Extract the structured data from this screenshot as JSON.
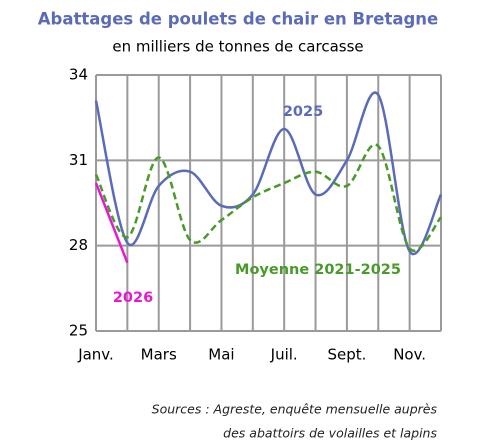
{
  "chart_data": {
    "type": "line",
    "title": "Abattages de poulets de chair en Bretagne",
    "subtitle": "en milliers de tonnes de carcasse",
    "categories": [
      "Janv.",
      null,
      "Mars",
      null,
      "Mai",
      null,
      "Juil.",
      null,
      "Sept.",
      null,
      "Nov.",
      null
    ],
    "series": [
      {
        "name": "2025",
        "color": "#5a6bb8",
        "dash": false,
        "values": [
          33.1,
          28.1,
          30.1,
          30.6,
          29.4,
          29.8,
          32.1,
          29.8,
          31.0,
          33.3,
          27.8,
          29.8
        ]
      },
      {
        "name": "Moyenne 2021-2025",
        "color": "#4a9a2a",
        "dash": true,
        "values": [
          30.5,
          28.3,
          31.1,
          28.2,
          28.9,
          29.7,
          30.2,
          30.6,
          30.1,
          31.5,
          27.9,
          29.0
        ]
      },
      {
        "name": "2026",
        "color": "#e619d0",
        "dash": false,
        "values": [
          30.2,
          27.4,
          null,
          null,
          null,
          null,
          null,
          null,
          null,
          null,
          null,
          null
        ]
      }
    ],
    "ylim": [
      25,
      34
    ],
    "yticks": [
      25,
      28,
      31,
      34
    ],
    "grid": true,
    "source": [
      "Sources : Agreste, enquête mensuelle auprès",
      "des abattoirs de volailles et lapins"
    ]
  }
}
